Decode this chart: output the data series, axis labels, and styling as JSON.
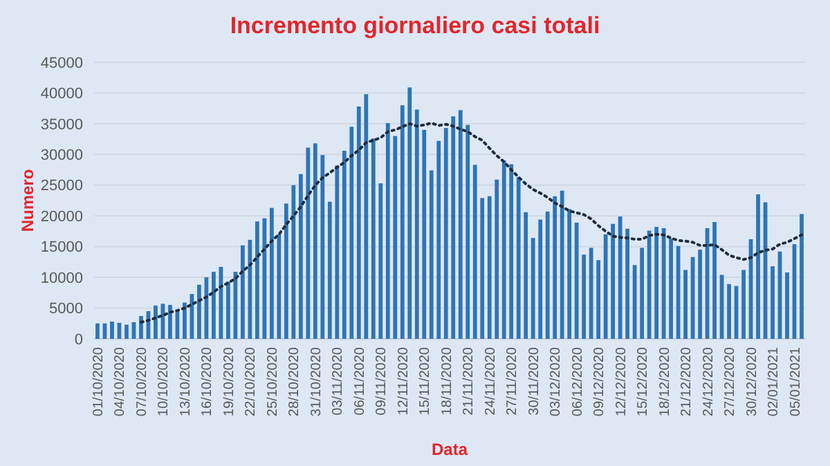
{
  "chart_data": {
    "type": "bar",
    "title": "Incremento giornaliero casi totali",
    "xlabel": "Data",
    "ylabel": "Numero",
    "categories": [
      "01/10/2020",
      null,
      null,
      "04/10/2020",
      null,
      null,
      "07/10/2020",
      null,
      null,
      "10/10/2020",
      null,
      null,
      "13/10/2020",
      null,
      null,
      "16/10/2020",
      null,
      null,
      "19/10/2020",
      null,
      null,
      "22/10/2020",
      null,
      null,
      "25/10/2020",
      null,
      null,
      "28/10/2020",
      null,
      null,
      "31/10/2020",
      null,
      null,
      "03/11/2020",
      null,
      null,
      "06/11/2020",
      null,
      null,
      "09/11/2020",
      null,
      null,
      "12/11/2020",
      null,
      null,
      "15/11/2020",
      null,
      null,
      "18/11/2020",
      null,
      null,
      "21/11/2020",
      null,
      null,
      "24/11/2020",
      null,
      null,
      "27/11/2020",
      null,
      null,
      "30/11/2020",
      null,
      null,
      "03/12/2020",
      null,
      null,
      "06/12/2020",
      null,
      null,
      "09/12/2020",
      null,
      null,
      "12/12/2020",
      null,
      null,
      "15/12/2020",
      null,
      null,
      "18/12/2020",
      null,
      null,
      "21/12/2020",
      null,
      null,
      "24/12/2020",
      null,
      null,
      "27/12/2020",
      null,
      null,
      "30/12/2020",
      null,
      null,
      "02/01/2021",
      null,
      null,
      "05/01/2021",
      null
    ],
    "series": [
      {
        "color": "#2e75b6",
        "values": [
          2500,
          2500,
          2800,
          2600,
          2300,
          2700,
          3700,
          4500,
          5400,
          5700,
          5500,
          4600,
          5900,
          7300,
          8800,
          10000,
          10900,
          11700,
          9300,
          10900,
          15200,
          16100,
          19100,
          19600,
          21300,
          17000,
          22000,
          25000,
          26800,
          31100,
          31800,
          29900,
          22300,
          28200,
          30600,
          34500,
          37800,
          39800,
          32600,
          25300,
          35100,
          33000,
          38000,
          40900,
          37300,
          34000,
          27400,
          32200,
          34300,
          36200,
          37200,
          34800,
          28300,
          22900,
          23200,
          25900,
          29000,
          28400,
          26300,
          20600,
          16400,
          19400,
          20700,
          23200,
          24100,
          21100,
          18900,
          13700,
          14800,
          12800,
          17000,
          18700,
          19900,
          17900,
          12000,
          14800,
          17600,
          18200,
          18000,
          16300,
          15100,
          11200,
          13300,
          14500,
          18000,
          19000,
          10400,
          8900,
          8600,
          11200,
          16200,
          23500,
          22200,
          11800,
          14200,
          10800,
          15400,
          20300
        ]
      },
      {
        "type": "line",
        "color": "#1f2d3d",
        "line_style": "dotted",
        "values": [
          null,
          null,
          null,
          null,
          null,
          null,
          2700,
          3000,
          3400,
          3800,
          4300,
          4600,
          5000,
          5600,
          6200,
          6800,
          7600,
          8500,
          9100,
          9800,
          11000,
          12000,
          13300,
          14600,
          15900,
          17000,
          18600,
          20000,
          21500,
          23300,
          25000,
          26200,
          27000,
          27900,
          28700,
          29800,
          30700,
          31900,
          32300,
          32700,
          33700,
          34000,
          34500,
          35000,
          34600,
          34800,
          35100,
          34700,
          34900,
          34600,
          34100,
          33700,
          32900,
          32300,
          31000,
          29800,
          28800,
          27500,
          26300,
          25200,
          24300,
          23700,
          23000,
          22100,
          21500,
          20800,
          20500,
          20200,
          19500,
          18400,
          17500,
          16700,
          16500,
          16400,
          16200,
          16200,
          16800,
          17000,
          16900,
          16400,
          16000,
          15900,
          15700,
          15200,
          15200,
          15300,
          14500,
          13600,
          13200,
          12900,
          13200,
          14000,
          14400,
          14600,
          15400,
          15700,
          16300,
          16900
        ]
      }
    ],
    "ylim": [
      0,
      45000
    ],
    "yticks": [
      0,
      5000,
      10000,
      15000,
      20000,
      25000,
      30000,
      35000,
      40000,
      45000
    ],
    "grid": "y"
  }
}
